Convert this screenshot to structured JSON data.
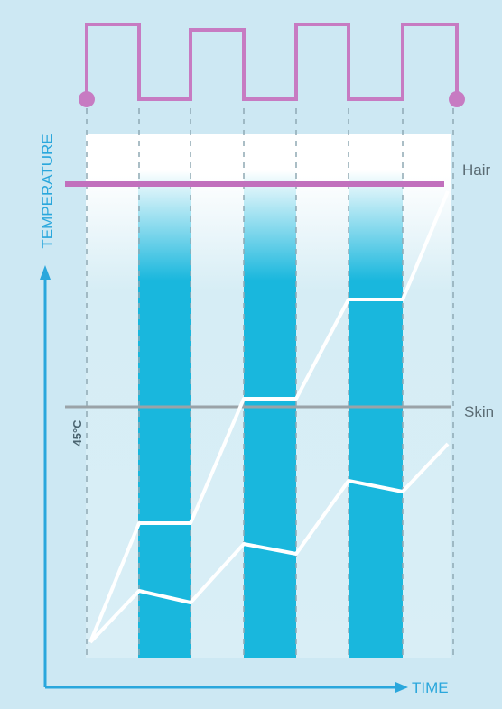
{
  "diagram": {
    "axis_y_label": "TEMPERATURE",
    "axis_x_label": "TIME",
    "label_hair": "Hair",
    "label_skin": "Skin",
    "label_skin_threshold": "45°C"
  },
  "colors": {
    "background": "#cde8f3",
    "panel_light": "#e8f5fa",
    "pulse_cyan": "#19b7dd",
    "pulse_magenta": "#c77bc2",
    "hair_line": "#c170bd",
    "axis_blue": "#2aa7dc",
    "divider_grey": "#9aa3a8",
    "curve_white": "#ffffff"
  }
}
